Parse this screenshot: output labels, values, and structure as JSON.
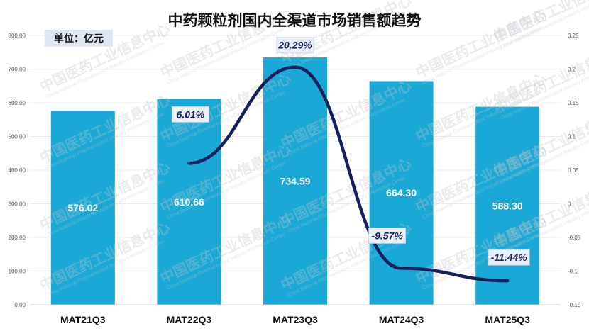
{
  "chart_data": {
    "type": "bar",
    "title": "中药颗粒剂国内全渠道市场销售额趋势",
    "unit": "单位：亿元",
    "categories": [
      "MAT21Q3",
      "MAT22Q3",
      "MAT23Q3",
      "MAT24Q3",
      "MAT25Q3"
    ],
    "series": [
      {
        "values": [
          576.02,
          610.66,
          734.59,
          664.3,
          588.3
        ]
      }
    ],
    "value_labels": [
      "576.02",
      "610.66",
      "734.59",
      "664.30",
      "588.30"
    ],
    "growth_series": {
      "type": "line",
      "axis": "right",
      "x": [
        "MAT22Q3",
        "MAT23Q3",
        "MAT24Q3",
        "MAT25Q3"
      ],
      "values": [
        0.0601,
        0.2029,
        -0.0957,
        -0.1144
      ],
      "labels": [
        "6.01%",
        "20.29%",
        "-9.57%",
        "-11.44%"
      ]
    },
    "ylim": [
      0,
      800
    ],
    "yticks": [
      "0.00",
      "100.00",
      "200.00",
      "300.00",
      "400.00",
      "500.00",
      "600.00",
      "700.00",
      "800.00"
    ],
    "y2lim": [
      -0.15,
      0.25
    ],
    "y2ticks": [
      "-0.15",
      "-0.1",
      "-0.05",
      "0",
      "0.05",
      "0.1",
      "0.15",
      "0.2",
      "0.25"
    ],
    "grid": true,
    "colors": {
      "bar": "#1aa9d6",
      "line": "#13205e"
    }
  },
  "watermark": {
    "text": "中国医药工业信息中心",
    "subtext": "China National Pharmaceutical Industry Information Center"
  }
}
